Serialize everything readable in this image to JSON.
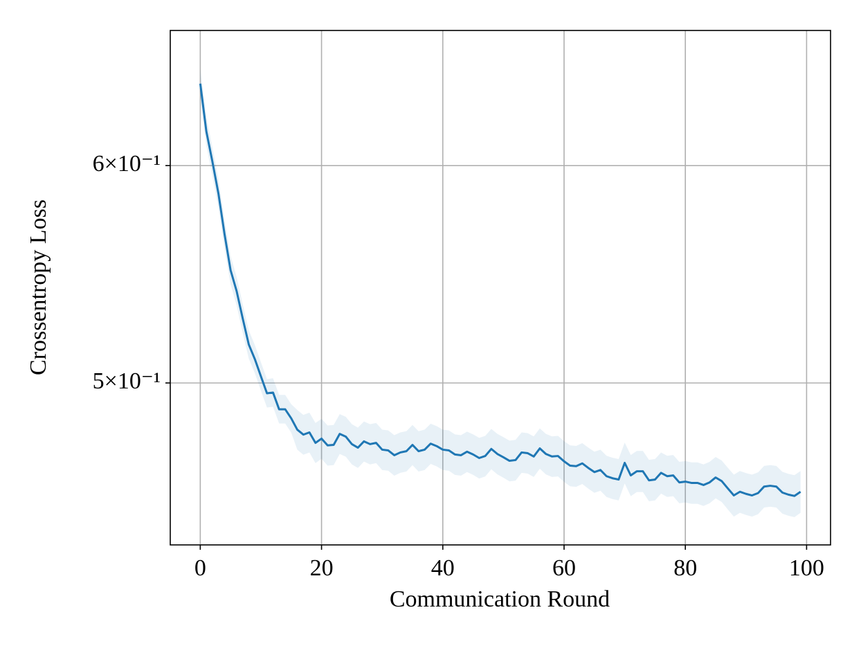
{
  "chart_data": {
    "type": "line",
    "xlabel": "Communication Round",
    "ylabel": "Crossentropy Loss",
    "x": [
      0,
      1,
      2,
      3,
      4,
      5,
      6,
      7,
      8,
      9,
      10,
      11,
      12,
      13,
      14,
      15,
      16,
      17,
      18,
      19,
      20,
      21,
      22,
      23,
      24,
      25,
      26,
      27,
      28,
      29,
      30,
      31,
      32,
      33,
      34,
      35,
      36,
      37,
      38,
      39,
      40,
      41,
      42,
      43,
      44,
      45,
      46,
      47,
      48,
      49,
      50,
      51,
      52,
      53,
      54,
      55,
      56,
      57,
      58,
      59,
      60,
      61,
      62,
      63,
      64,
      65,
      66,
      67,
      68,
      69,
      70,
      71,
      72,
      73,
      74,
      75,
      76,
      77,
      78,
      79,
      80,
      81,
      82,
      83,
      84,
      85,
      86,
      87,
      88,
      89,
      90,
      91,
      92,
      93,
      94,
      95,
      96,
      97,
      98,
      99
    ],
    "values": [
      0.6427,
      0.6175,
      0.602,
      0.586,
      0.5665,
      0.5496,
      0.54,
      0.5278,
      0.5164,
      0.5101,
      0.5028,
      0.4957,
      0.496,
      0.4891,
      0.4891,
      0.4854,
      0.4808,
      0.4788,
      0.4797,
      0.4755,
      0.4772,
      0.4745,
      0.4747,
      0.4791,
      0.478,
      0.475,
      0.4736,
      0.4761,
      0.475,
      0.4755,
      0.4728,
      0.4725,
      0.4706,
      0.4717,
      0.4722,
      0.4747,
      0.4722,
      0.4728,
      0.4752,
      0.4742,
      0.4728,
      0.4725,
      0.4709,
      0.4706,
      0.472,
      0.4709,
      0.4695,
      0.4703,
      0.4731,
      0.4711,
      0.4698,
      0.4684,
      0.4687,
      0.4717,
      0.4714,
      0.4701,
      0.4733,
      0.4711,
      0.4701,
      0.4703,
      0.4682,
      0.4665,
      0.4663,
      0.4674,
      0.4656,
      0.464,
      0.4648,
      0.4624,
      0.4616,
      0.4611,
      0.4676,
      0.4627,
      0.4643,
      0.4643,
      0.4608,
      0.4611,
      0.4637,
      0.4624,
      0.4627,
      0.46,
      0.4603,
      0.4598,
      0.4598,
      0.459,
      0.46,
      0.4619,
      0.4605,
      0.4577,
      0.455,
      0.4564,
      0.4556,
      0.455,
      0.4559,
      0.4584,
      0.4587,
      0.4584,
      0.4561,
      0.4553,
      0.4548,
      0.4564
    ],
    "upper": [
      0.6504,
      0.6249,
      0.6092,
      0.593,
      0.5733,
      0.5562,
      0.5465,
      0.5341,
      0.5226,
      0.5162,
      0.5088,
      0.5016,
      0.502,
      0.495,
      0.495,
      0.4912,
      0.4888,
      0.4868,
      0.4877,
      0.4835,
      0.4852,
      0.4825,
      0.4827,
      0.4871,
      0.486,
      0.483,
      0.4816,
      0.4841,
      0.483,
      0.4835,
      0.4808,
      0.4805,
      0.4786,
      0.4797,
      0.4802,
      0.4827,
      0.4802,
      0.4808,
      0.4832,
      0.4822,
      0.4808,
      0.4805,
      0.4789,
      0.4786,
      0.48,
      0.4789,
      0.4775,
      0.4783,
      0.4811,
      0.4791,
      0.4778,
      0.4764,
      0.4767,
      0.4797,
      0.4794,
      0.4781,
      0.4813,
      0.4791,
      0.4781,
      0.4783,
      0.4762,
      0.4745,
      0.4743,
      0.4754,
      0.4736,
      0.472,
      0.4728,
      0.4704,
      0.4696,
      0.4691,
      0.4756,
      0.4707,
      0.4723,
      0.4723,
      0.4688,
      0.4691,
      0.4717,
      0.4704,
      0.4707,
      0.468,
      0.4683,
      0.4678,
      0.4678,
      0.467,
      0.468,
      0.4699,
      0.4685,
      0.4657,
      0.463,
      0.4644,
      0.4636,
      0.463,
      0.4639,
      0.4664,
      0.4667,
      0.4664,
      0.4641,
      0.4633,
      0.4628,
      0.4644
    ],
    "lower": [
      0.6351,
      0.6102,
      0.5949,
      0.5791,
      0.5598,
      0.5431,
      0.5336,
      0.5215,
      0.5103,
      0.5041,
      0.4968,
      0.4898,
      0.4901,
      0.4833,
      0.4833,
      0.4796,
      0.4728,
      0.4708,
      0.4717,
      0.4675,
      0.4692,
      0.4665,
      0.4667,
      0.4711,
      0.47,
      0.467,
      0.4656,
      0.4681,
      0.467,
      0.4675,
      0.4648,
      0.4645,
      0.4626,
      0.4637,
      0.4642,
      0.4667,
      0.4642,
      0.4648,
      0.4672,
      0.4662,
      0.4648,
      0.4645,
      0.4629,
      0.4626,
      0.464,
      0.4629,
      0.4615,
      0.4623,
      0.4651,
      0.4631,
      0.4618,
      0.4604,
      0.4607,
      0.4637,
      0.4634,
      0.4621,
      0.4653,
      0.4631,
      0.4621,
      0.4623,
      0.4602,
      0.4585,
      0.4583,
      0.4594,
      0.4576,
      0.456,
      0.4568,
      0.4544,
      0.4536,
      0.4531,
      0.4596,
      0.4547,
      0.4563,
      0.4563,
      0.4528,
      0.4531,
      0.4557,
      0.4544,
      0.4547,
      0.452,
      0.4523,
      0.4518,
      0.4518,
      0.451,
      0.452,
      0.4539,
      0.4525,
      0.4497,
      0.447,
      0.4484,
      0.4476,
      0.447,
      0.4479,
      0.4504,
      0.4507,
      0.4504,
      0.4481,
      0.4473,
      0.4468,
      0.4484
    ],
    "color": "#1f77b4",
    "xlim": [
      -4.95,
      103.95
    ],
    "xticks": [
      0,
      20,
      40,
      60,
      80,
      100
    ],
    "ylim": [
      0.4365,
      0.672
    ],
    "yticks": [
      {
        "value": 0.5,
        "label": "5×10⁻¹"
      },
      {
        "value": 0.6,
        "label": "6×10⁻¹"
      }
    ],
    "ylog": true,
    "grid": true
  }
}
